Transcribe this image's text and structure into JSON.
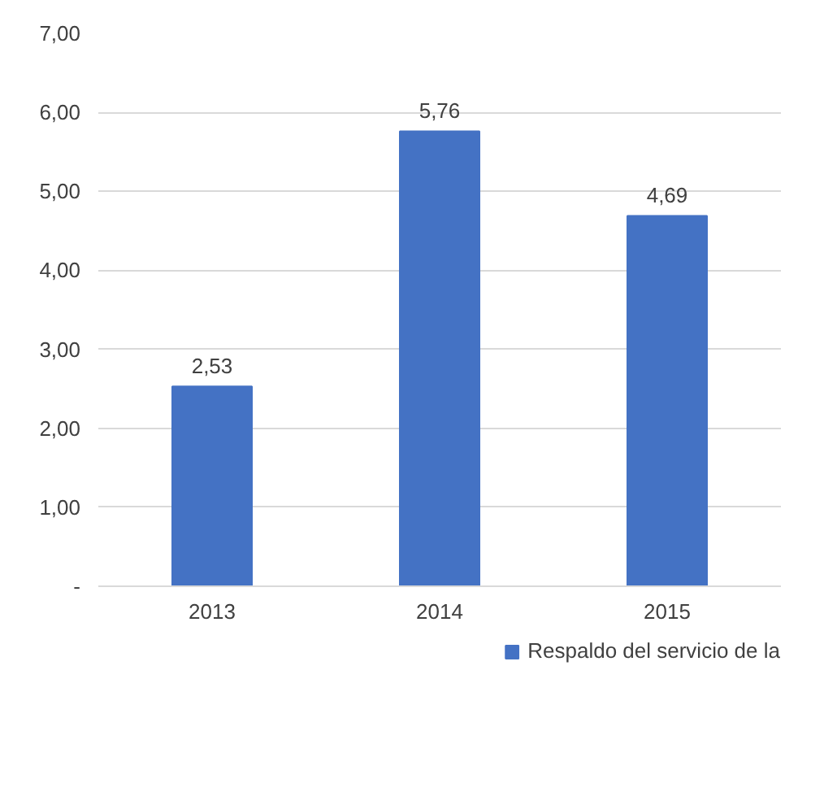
{
  "chart_data": {
    "type": "bar",
    "categories": [
      "2013",
      "2014",
      "2015"
    ],
    "series": [
      {
        "name": "Respaldo del servicio de la",
        "color": "#4472c4",
        "values": [
          2.53,
          5.76,
          4.69
        ],
        "value_labels": [
          "2,53",
          "5,76",
          "4,69"
        ]
      }
    ],
    "ylim": [
      0,
      7
    ],
    "yticks": [
      {
        "value": 0,
        "label": "-"
      },
      {
        "value": 1,
        "label": "1,00"
      },
      {
        "value": 2,
        "label": "2,00"
      },
      {
        "value": 3,
        "label": "3,00"
      },
      {
        "value": 4,
        "label": "4,00"
      },
      {
        "value": 5,
        "label": "5,00"
      },
      {
        "value": 6,
        "label": "6,00"
      },
      {
        "value": 7,
        "label": "7,00"
      }
    ],
    "grid": "y",
    "legend": "bottom"
  }
}
